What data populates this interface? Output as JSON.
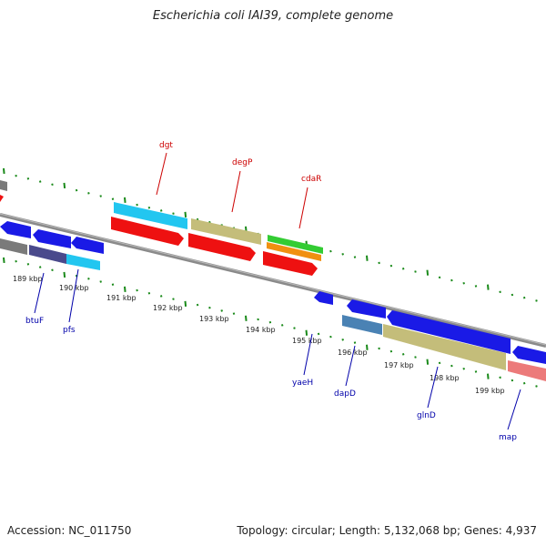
{
  "title": "Escherichia coli IAI39, complete genome",
  "footer": {
    "accession": "Accession: NC_011750",
    "topology": "Topology: circular; Length: 5,132,068 bp; Genes: 4,937"
  },
  "colors": {
    "backbone": "#8a8a8a",
    "tick": "#1a8a1a",
    "label_top": "#cc0000",
    "label_bottom": "#0000aa",
    "red": "#ee1111",
    "blue": "#1a1ae6",
    "cyan": "#22c6f0",
    "khaki": "#c4bd7a",
    "green": "#33cc33",
    "orange": "#f09010",
    "steel": "#4a82b4",
    "slate": "#4a4a8c",
    "gray": "#7a7a7a",
    "pink": "#ec7a7a"
  },
  "kbp_ticks": [
    {
      "label": "189 kbp"
    },
    {
      "label": "190 kbp"
    },
    {
      "label": "191 kbp"
    },
    {
      "label": "192 kbp"
    },
    {
      "label": "193 kbp"
    },
    {
      "label": "194 kbp"
    },
    {
      "label": "195 kbp"
    },
    {
      "label": "196 kbp"
    },
    {
      "label": "197 kbp"
    },
    {
      "label": "198 kbp"
    },
    {
      "label": "199 kbp"
    }
  ],
  "gene_labels_top": [
    {
      "name": "dgt"
    },
    {
      "name": "degP"
    },
    {
      "name": "cdaR"
    }
  ],
  "gene_labels_bottom": [
    {
      "name": "btuF"
    },
    {
      "name": "pfs"
    },
    {
      "name": "yaeH"
    },
    {
      "name": "dapD"
    },
    {
      "name": "glnD"
    },
    {
      "name": "map"
    }
  ]
}
